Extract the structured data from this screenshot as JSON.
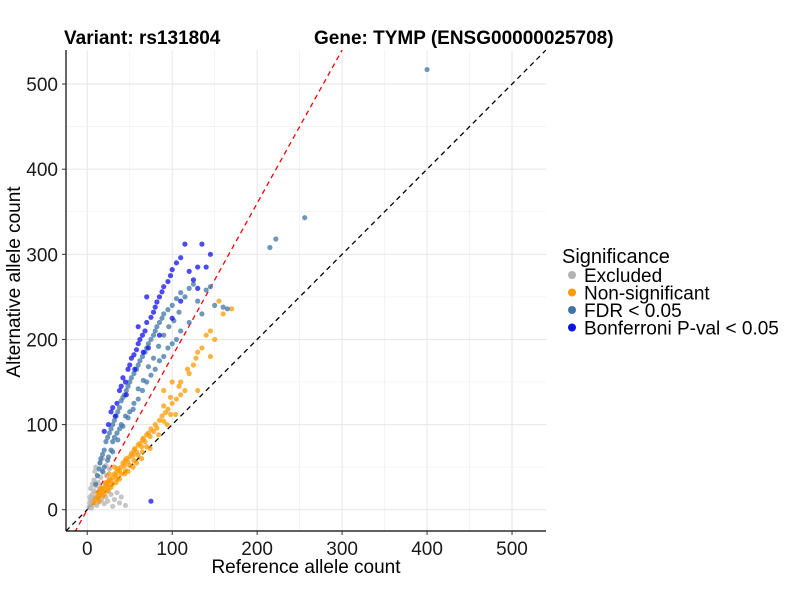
{
  "chart_data": {
    "type": "scatter",
    "title_left": "Variant: rs131804",
    "title_right": "Gene: TYMP (ENSG00000025708)",
    "xlabel": "Reference allele count",
    "ylabel": "Alternative allele count",
    "xlim": [
      -25,
      540
    ],
    "ylim": [
      -25,
      540
    ],
    "xticks": [
      0,
      100,
      200,
      300,
      400,
      500
    ],
    "yticks": [
      0,
      100,
      200,
      300,
      400,
      500
    ],
    "grid": true,
    "reference_lines": [
      {
        "name": "identity",
        "slope": 1,
        "intercept": 0,
        "color": "#000000",
        "style": "dashed"
      },
      {
        "name": "fitted-ratio",
        "slope": 1.8,
        "intercept": 0,
        "color": "#ff0000",
        "style": "dashed"
      }
    ],
    "legend": {
      "title": "Significance",
      "position": "right",
      "entries": [
        {
          "label": "Excluded",
          "color": "#b3b3b3"
        },
        {
          "label": "Non-significant",
          "color": "#ff9a00"
        },
        {
          "label": "FDR < 0.05",
          "color": "#3e74a8"
        },
        {
          "label": "Bonferroni P-val < 0.05",
          "color": "#1010ee"
        }
      ]
    },
    "series": [
      {
        "name": "Excluded",
        "color": "#b3b3b3",
        "points": [
          [
            2,
            3
          ],
          [
            3,
            8
          ],
          [
            4,
            12
          ],
          [
            5,
            6
          ],
          [
            6,
            18
          ],
          [
            7,
            10
          ],
          [
            8,
            22
          ],
          [
            9,
            14
          ],
          [
            10,
            28
          ],
          [
            11,
            5
          ],
          [
            12,
            16
          ],
          [
            13,
            32
          ],
          [
            14,
            9
          ],
          [
            15,
            25
          ],
          [
            16,
            38
          ],
          [
            17,
            12
          ],
          [
            18,
            20
          ],
          [
            19,
            44
          ],
          [
            20,
            7
          ],
          [
            21,
            30
          ],
          [
            22,
            15
          ],
          [
            23,
            40
          ],
          [
            24,
            10
          ],
          [
            25,
            22
          ],
          [
            26,
            48
          ],
          [
            28,
            18
          ],
          [
            30,
            4
          ],
          [
            12,
            40
          ],
          [
            8,
            35
          ],
          [
            6,
            30
          ],
          [
            4,
            25
          ],
          [
            10,
            50
          ],
          [
            15,
            55
          ],
          [
            5,
            2
          ],
          [
            18,
            60
          ],
          [
            22,
            52
          ],
          [
            32,
            12
          ],
          [
            35,
            20
          ],
          [
            38,
            8
          ],
          [
            40,
            15
          ],
          [
            45,
            5
          ],
          [
            3,
            15
          ],
          [
            9,
            45
          ]
        ]
      },
      {
        "name": "Non-significant",
        "color": "#ff9a00",
        "points": [
          [
            8,
            8
          ],
          [
            10,
            12
          ],
          [
            12,
            14
          ],
          [
            14,
            17
          ],
          [
            15,
            20
          ],
          [
            16,
            22
          ],
          [
            18,
            25
          ],
          [
            20,
            24
          ],
          [
            22,
            28
          ],
          [
            24,
            30
          ],
          [
            25,
            33
          ],
          [
            26,
            36
          ],
          [
            28,
            34
          ],
          [
            30,
            38
          ],
          [
            32,
            42
          ],
          [
            34,
            40
          ],
          [
            35,
            45
          ],
          [
            36,
            48
          ],
          [
            38,
            46
          ],
          [
            40,
            50
          ],
          [
            42,
            55
          ],
          [
            44,
            52
          ],
          [
            45,
            58
          ],
          [
            46,
            60
          ],
          [
            48,
            56
          ],
          [
            50,
            62
          ],
          [
            52,
            66
          ],
          [
            54,
            64
          ],
          [
            55,
            70
          ],
          [
            56,
            72
          ],
          [
            58,
            68
          ],
          [
            60,
            76
          ],
          [
            62,
            78
          ],
          [
            64,
            74
          ],
          [
            65,
            82
          ],
          [
            66,
            84
          ],
          [
            68,
            80
          ],
          [
            70,
            88
          ],
          [
            72,
            90
          ],
          [
            74,
            86
          ],
          [
            75,
            95
          ],
          [
            78,
            92
          ],
          [
            80,
            100
          ],
          [
            82,
            96
          ],
          [
            85,
            105
          ],
          [
            88,
            110
          ],
          [
            90,
            104
          ],
          [
            92,
            114
          ],
          [
            95,
            118
          ],
          [
            98,
            112
          ],
          [
            100,
            125
          ],
          [
            105,
            130
          ],
          [
            110,
            135
          ],
          [
            115,
            140
          ],
          [
            20,
            18
          ],
          [
            25,
            26
          ],
          [
            30,
            30
          ],
          [
            35,
            36
          ],
          [
            40,
            42
          ],
          [
            45,
            46
          ],
          [
            50,
            52
          ],
          [
            55,
            58
          ],
          [
            60,
            64
          ],
          [
            65,
            68
          ],
          [
            70,
            74
          ],
          [
            18,
            16
          ],
          [
            28,
            26
          ],
          [
            38,
            36
          ],
          [
            48,
            45
          ],
          [
            58,
            55
          ],
          [
            110,
            150
          ],
          [
            120,
            160
          ],
          [
            125,
            170
          ],
          [
            130,
            185
          ],
          [
            140,
            205
          ],
          [
            145,
            210
          ],
          [
            150,
            200
          ],
          [
            145,
            180
          ],
          [
            135,
            190
          ],
          [
            128,
            178
          ],
          [
            118,
            165
          ],
          [
            108,
            145
          ],
          [
            98,
            132
          ],
          [
            90,
            122
          ],
          [
            130,
            140
          ],
          [
            160,
            230
          ],
          [
            170,
            236
          ],
          [
            155,
            245
          ],
          [
            100,
            150
          ],
          [
            90,
            140
          ],
          [
            12,
            20
          ],
          [
            16,
            26
          ],
          [
            22,
            32
          ],
          [
            26,
            42
          ],
          [
            32,
            50
          ],
          [
            14,
            10
          ],
          [
            24,
            22
          ],
          [
            34,
            32
          ],
          [
            44,
            42
          ],
          [
            54,
            50
          ],
          [
            64,
            60
          ],
          [
            74,
            72
          ],
          [
            84,
            88
          ],
          [
            94,
            100
          ],
          [
            104,
            112
          ]
        ]
      },
      {
        "name": "FDR < 0.05",
        "color": "#3e74a8",
        "points": [
          [
            10,
            30
          ],
          [
            12,
            40
          ],
          [
            14,
            48
          ],
          [
            15,
            55
          ],
          [
            16,
            60
          ],
          [
            18,
            65
          ],
          [
            20,
            70
          ],
          [
            20,
            50
          ],
          [
            22,
            80
          ],
          [
            24,
            85
          ],
          [
            25,
            62
          ],
          [
            26,
            90
          ],
          [
            28,
            95
          ],
          [
            28,
            70
          ],
          [
            30,
            100
          ],
          [
            30,
            80
          ],
          [
            32,
            105
          ],
          [
            32,
            85
          ],
          [
            34,
            110
          ],
          [
            35,
            90
          ],
          [
            36,
            115
          ],
          [
            38,
            120
          ],
          [
            38,
            95
          ],
          [
            40,
            128
          ],
          [
            40,
            100
          ],
          [
            42,
            132
          ],
          [
            44,
            135
          ],
          [
            45,
            110
          ],
          [
            46,
            140
          ],
          [
            48,
            145
          ],
          [
            50,
            150
          ],
          [
            50,
            115
          ],
          [
            52,
            155
          ],
          [
            55,
            160
          ],
          [
            55,
            125
          ],
          [
            58,
            165
          ],
          [
            60,
            170
          ],
          [
            60,
            130
          ],
          [
            62,
            175
          ],
          [
            65,
            180
          ],
          [
            65,
            140
          ],
          [
            68,
            185
          ],
          [
            70,
            190
          ],
          [
            70,
            150
          ],
          [
            72,
            195
          ],
          [
            75,
            200
          ],
          [
            75,
            158
          ],
          [
            78,
            205
          ],
          [
            80,
            210
          ],
          [
            80,
            165
          ],
          [
            82,
            215
          ],
          [
            85,
            220
          ],
          [
            85,
            175
          ],
          [
            88,
            225
          ],
          [
            90,
            230
          ],
          [
            90,
            180
          ],
          [
            95,
            235
          ],
          [
            95,
            190
          ],
          [
            100,
            240
          ],
          [
            100,
            195
          ],
          [
            105,
            248
          ],
          [
            105,
            200
          ],
          [
            110,
            255
          ],
          [
            110,
            210
          ],
          [
            115,
            250
          ],
          [
            120,
            260
          ],
          [
            120,
            220
          ],
          [
            125,
            265
          ],
          [
            130,
            245
          ],
          [
            135,
            230
          ],
          [
            140,
            258
          ],
          [
            145,
            262
          ],
          [
            150,
            240
          ],
          [
            160,
            238
          ],
          [
            165,
            236
          ],
          [
            215,
            308
          ],
          [
            222,
            318
          ],
          [
            256,
            343
          ],
          [
            400,
            517
          ],
          [
            18,
            45
          ],
          [
            24,
            58
          ],
          [
            30,
            68
          ],
          [
            36,
            82
          ],
          [
            42,
            98
          ],
          [
            48,
            108
          ],
          [
            54,
            118
          ],
          [
            60,
            142
          ],
          [
            66,
            152
          ],
          [
            72,
            168
          ],
          [
            78,
            178
          ],
          [
            84,
            192
          ],
          [
            90,
            205
          ],
          [
            96,
            215
          ],
          [
            102,
            222
          ],
          [
            108,
            232
          ]
        ]
      },
      {
        "name": "Bonferroni P-val < 0.05",
        "color": "#1010ee",
        "points": [
          [
            20,
            92
          ],
          [
            25,
            100
          ],
          [
            28,
            115
          ],
          [
            30,
            120
          ],
          [
            35,
            125
          ],
          [
            38,
            140
          ],
          [
            40,
            145
          ],
          [
            42,
            155
          ],
          [
            45,
            150
          ],
          [
            48,
            165
          ],
          [
            50,
            170
          ],
          [
            52,
            178
          ],
          [
            55,
            182
          ],
          [
            58,
            188
          ],
          [
            60,
            195
          ],
          [
            62,
            200
          ],
          [
            65,
            205
          ],
          [
            68,
            210
          ],
          [
            70,
            220
          ],
          [
            72,
            190
          ],
          [
            75,
            226
          ],
          [
            78,
            232
          ],
          [
            80,
            238
          ],
          [
            82,
            244
          ],
          [
            85,
            250
          ],
          [
            88,
            256
          ],
          [
            90,
            262
          ],
          [
            95,
            268
          ],
          [
            98,
            275
          ],
          [
            100,
            282
          ],
          [
            105,
            290
          ],
          [
            110,
            296
          ],
          [
            115,
            312
          ],
          [
            120,
            280
          ],
          [
            125,
            270
          ],
          [
            130,
            260
          ],
          [
            135,
            312
          ],
          [
            140,
            285
          ],
          [
            75,
            10
          ],
          [
            33,
            110
          ],
          [
            46,
            135
          ],
          [
            56,
            165
          ],
          [
            66,
            185
          ],
          [
            85,
            205
          ],
          [
            100,
            225
          ],
          [
            110,
            245
          ],
          [
            130,
            285
          ],
          [
            145,
            300
          ],
          [
            60,
            215
          ],
          [
            70,
            250
          ]
        ]
      }
    ]
  }
}
